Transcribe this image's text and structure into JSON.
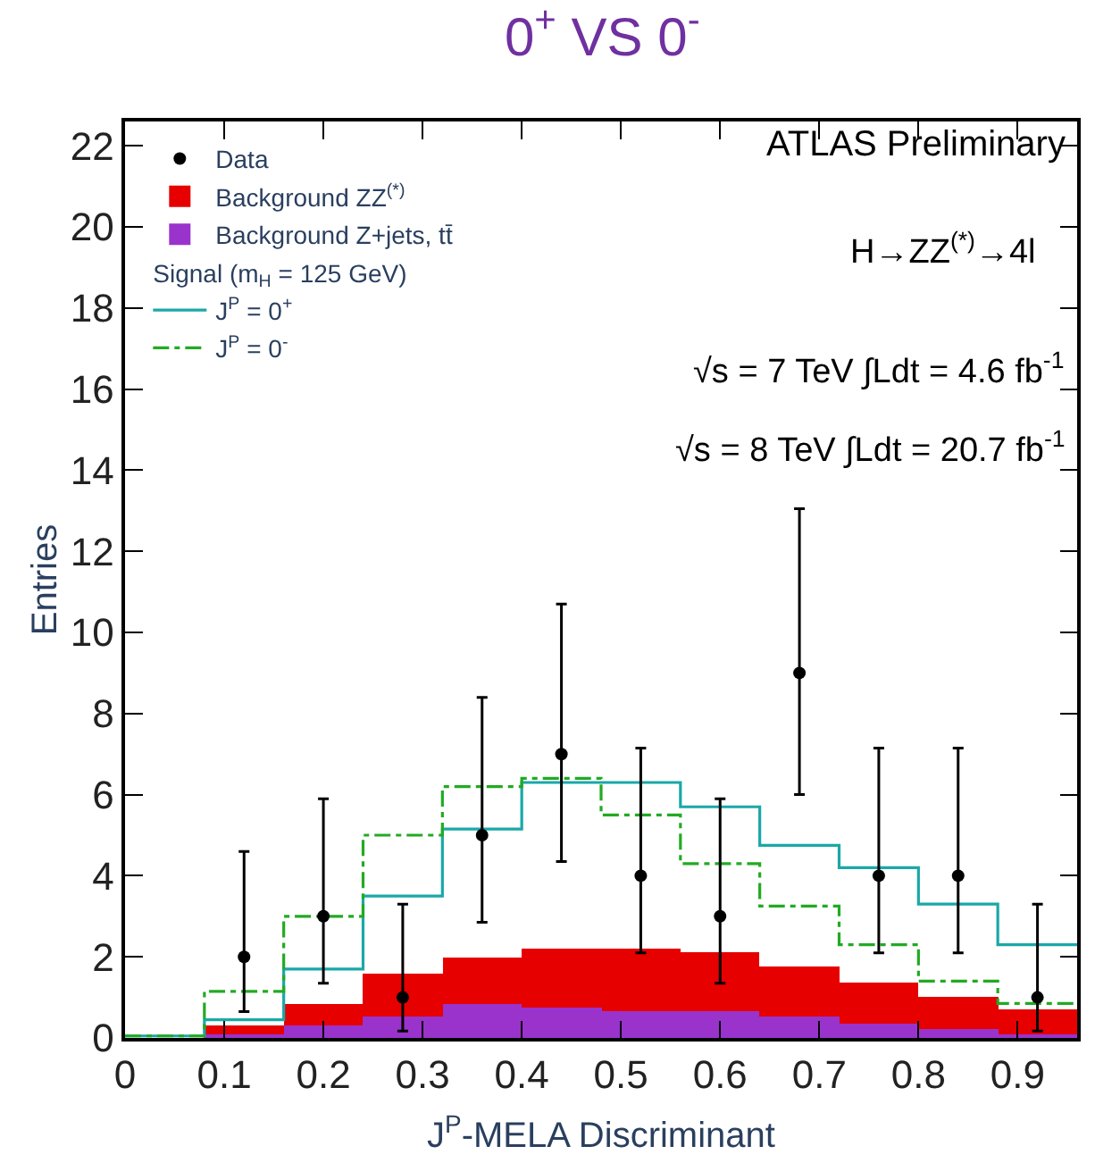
{
  "chart_data": {
    "type": "bar",
    "title": "0$^{+}$ VS 0$^{-}$",
    "xlabel": "J$^{P}$-MELA Discriminant",
    "ylabel": "Entries",
    "x": [
      0.04,
      0.12,
      0.2,
      0.28,
      0.36,
      0.44,
      0.52,
      0.6,
      0.68,
      0.76,
      0.84,
      0.92
    ],
    "stacked": true,
    "series": [
      {
        "name": "Background Z+jets, tt̄",
        "color": "#9933cc",
        "values": [
          0,
          0.1,
          0.3,
          0.55,
          0.85,
          0.75,
          0.65,
          0.65,
          0.55,
          0.35,
          0.2,
          0.1
        ]
      },
      {
        "name": "Background ZZ$^{(*)}$",
        "color": "#e60000",
        "values": [
          0,
          0.2,
          0.55,
          1.05,
          1.15,
          1.45,
          1.55,
          1.45,
          1.2,
          1.0,
          0.8,
          0.6
        ]
      },
      {
        "name": "J$^{P}$ = 0$^{+}$",
        "type": "step",
        "color": "#1aa8a8",
        "line_style": "solid",
        "x": [
          0,
          0.08,
          0.16,
          0.24,
          0.32,
          0.4,
          0.48,
          0.56,
          0.64,
          0.72,
          0.8,
          0.88,
          0.96
        ],
        "values": [
          0.05,
          0.45,
          1.7,
          3.5,
          5.15,
          6.3,
          6.3,
          5.7,
          4.75,
          4.2,
          3.3,
          2.3,
          2.3
        ]
      },
      {
        "name": "J$^{P}$ = 0$^{-}$",
        "type": "step",
        "color": "#22aa22",
        "line_style": "dashed",
        "x": [
          0,
          0.08,
          0.16,
          0.24,
          0.32,
          0.4,
          0.48,
          0.56,
          0.64,
          0.72,
          0.8,
          0.88,
          0.96
        ],
        "values": [
          0.05,
          1.15,
          3.0,
          5.0,
          6.2,
          6.4,
          5.5,
          4.3,
          3.25,
          2.3,
          1.4,
          0.85,
          0.85
        ]
      },
      {
        "name": "Data",
        "type": "scatter",
        "color": "#000000",
        "marker": "circle",
        "x": [
          0.12,
          0.2,
          0.28,
          0.36,
          0.44,
          0.52,
          0.6,
          0.68,
          0.76,
          0.84,
          0.92
        ],
        "values": [
          2,
          3,
          1,
          5,
          7,
          4,
          3,
          9,
          4,
          4,
          1
        ],
        "errors": [
          [
            0.65,
            4.6
          ],
          [
            1.35,
            5.9
          ],
          [
            0.17,
            3.3
          ],
          [
            2.85,
            8.4
          ],
          [
            4.35,
            10.7
          ],
          [
            2.1,
            7.15
          ],
          [
            1.35,
            5.9
          ],
          [
            6.0,
            13.05
          ],
          [
            2.1,
            7.15
          ],
          [
            2.1,
            7.15
          ],
          [
            0.17,
            3.3
          ]
        ]
      }
    ],
    "xlim": [
      0,
      0.96
    ],
    "xticks": [
      0,
      0.1,
      0.2,
      0.3,
      0.4,
      0.5,
      0.6,
      0.7,
      0.8,
      0.9
    ],
    "ylim": [
      0,
      22.6
    ],
    "yticks": [
      0,
      2,
      4,
      6,
      8,
      10,
      12,
      14,
      16,
      18,
      20,
      22
    ],
    "legend": "top left",
    "annotations": [
      "Signal (m$_{H}$ = 125 GeV)",
      "ATLAS Preliminary",
      "H→ZZ$^{(*)}$→4l",
      "√s = 7 TeV ∫Ldt = 4.6 fb$^{-1}$",
      "√s = 8 TeV ∫Ldt = 20.7 fb$^{-1}$"
    ]
  }
}
